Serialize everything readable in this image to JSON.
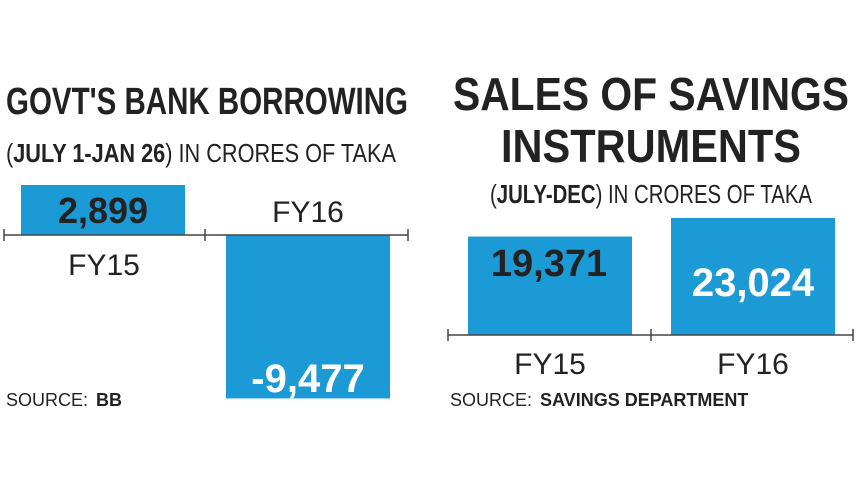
{
  "colors": {
    "bar": "#1c9ad6",
    "text": "#222222",
    "bar_label_light": "#ffffff",
    "axis": "#444444"
  },
  "chart_data": [
    {
      "type": "bar",
      "title": "GOVT'S BANK BORROWING",
      "subtitle_paren": "JULY 1-JAN 26",
      "subtitle_rest": " IN CRORES OF TAKA",
      "categories": [
        "FY15",
        "FY16"
      ],
      "values": [
        2899,
        -9477
      ],
      "value_labels": [
        "2,899",
        "-9,477"
      ],
      "source_prefix": "SOURCE:",
      "source_name": "BB",
      "ylim": [
        -9477,
        2899
      ]
    },
    {
      "type": "bar",
      "title_lines": [
        "SALES OF SAVINGS",
        "INSTRUMENTS"
      ],
      "subtitle_paren": "JULY-DEC",
      "subtitle_rest": " IN CRORES OF TAKA",
      "categories": [
        "FY15",
        "FY16"
      ],
      "values": [
        19371,
        23024
      ],
      "value_labels": [
        "19,371",
        "23,024"
      ],
      "source_prefix": "SOURCE:",
      "source_name": "SAVINGS DEPARTMENT",
      "ylim": [
        0,
        23024
      ]
    }
  ]
}
